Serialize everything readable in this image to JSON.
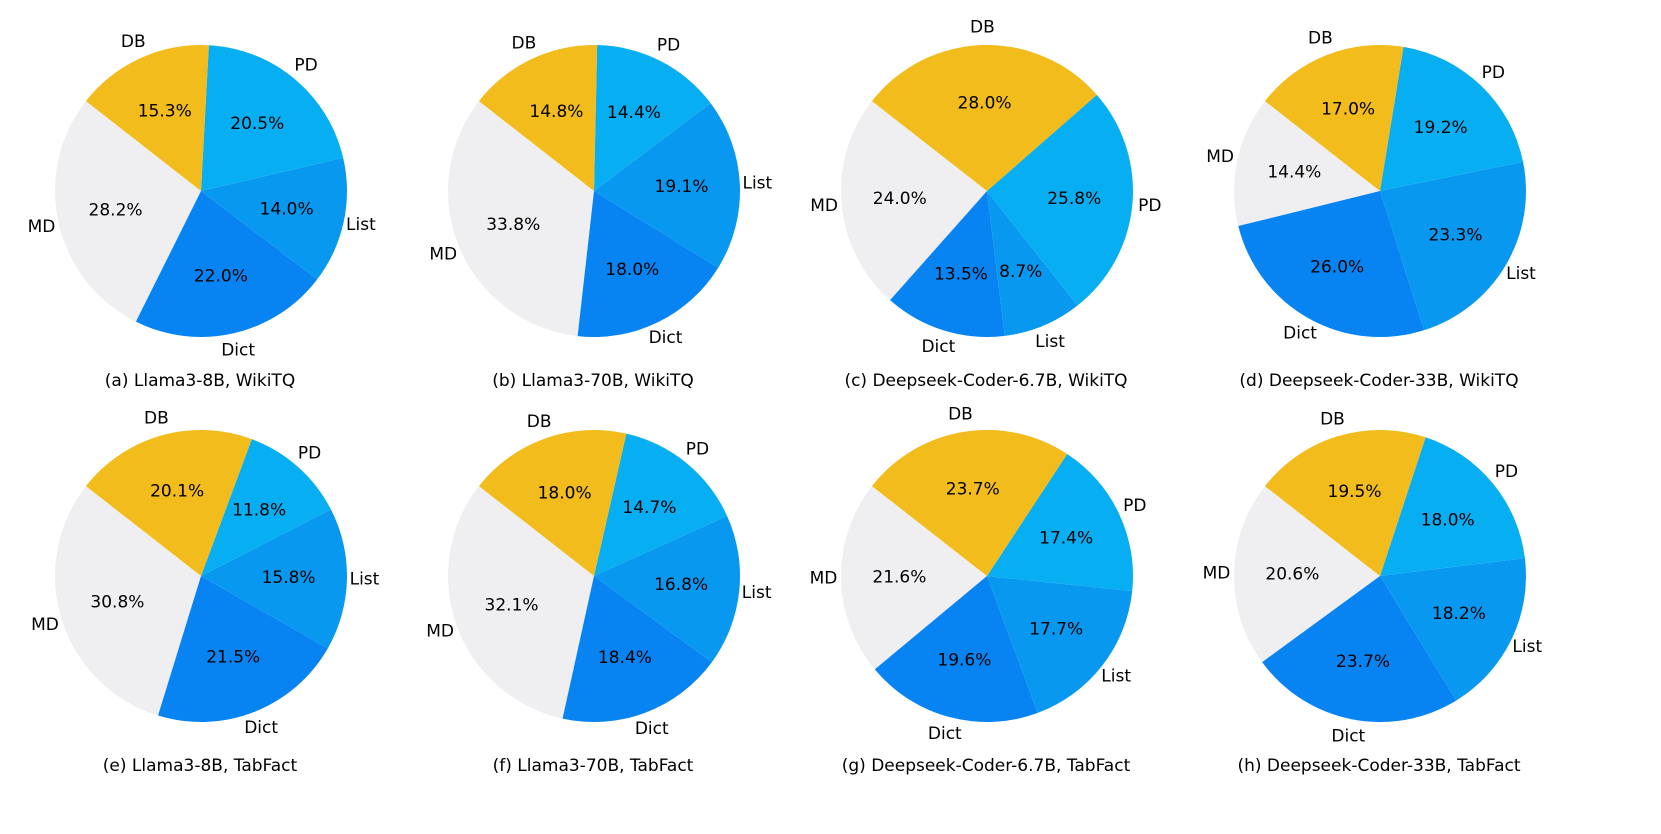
{
  "colors": {
    "DB": "#F2BC1C",
    "PD": "#08AEF2",
    "List": "#0898F0",
    "Dict": "#0884F2",
    "MD": "#EFEFF1"
  },
  "chart_data": [
    {
      "type": "pie",
      "caption": "(a) Llama3-8B, WikiTQ",
      "labels": [
        "DB",
        "PD",
        "List",
        "Dict",
        "MD"
      ],
      "values": [
        15.3,
        20.5,
        14.0,
        22.0,
        28.2
      ],
      "value_labels": [
        "15.3%",
        "20.5%",
        "14.0%",
        "22.0%",
        "28.2%"
      ]
    },
    {
      "type": "pie",
      "caption": "(b) Llama3-70B, WikiTQ",
      "labels": [
        "DB",
        "PD",
        "List",
        "Dict",
        "MD"
      ],
      "values": [
        14.8,
        14.4,
        19.1,
        18.0,
        33.8
      ],
      "value_labels": [
        "14.8%",
        "14.4%",
        "19.1%",
        "18.0%",
        "33.8%"
      ]
    },
    {
      "type": "pie",
      "caption": "(c) Deepseek-Coder-6.7B, WikiTQ",
      "labels": [
        "DB",
        "PD",
        "List",
        "Dict",
        "MD"
      ],
      "values": [
        28.0,
        25.8,
        8.7,
        13.5,
        24.0
      ],
      "value_labels": [
        "28.0%",
        "25.8%",
        "8.7%",
        "13.5%",
        "24.0%"
      ]
    },
    {
      "type": "pie",
      "caption": "(d) Deepseek-Coder-33B, WikiTQ",
      "labels": [
        "DB",
        "PD",
        "List",
        "Dict",
        "MD"
      ],
      "values": [
        17.0,
        19.2,
        23.3,
        26.0,
        14.4
      ],
      "value_labels": [
        "17.0%",
        "19.2%",
        "23.3%",
        "26.0%",
        "14.4%"
      ]
    },
    {
      "type": "pie",
      "caption": "(e) Llama3-8B, TabFact",
      "labels": [
        "DB",
        "PD",
        "List",
        "Dict",
        "MD"
      ],
      "values": [
        20.1,
        11.8,
        15.8,
        21.5,
        30.8
      ],
      "value_labels": [
        "20.1%",
        "11.8%",
        "15.8%",
        "21.5%",
        "30.8%"
      ]
    },
    {
      "type": "pie",
      "caption": "(f) Llama3-70B, TabFact",
      "labels": [
        "DB",
        "PD",
        "List",
        "Dict",
        "MD"
      ],
      "values": [
        18.0,
        14.7,
        16.8,
        18.4,
        32.1
      ],
      "value_labels": [
        "18.0%",
        "14.7%",
        "16.8%",
        "18.4%",
        "32.1%"
      ]
    },
    {
      "type": "pie",
      "caption": "(g) Deepseek-Coder-6.7B, TabFact",
      "labels": [
        "DB",
        "PD",
        "List",
        "Dict",
        "MD"
      ],
      "values": [
        23.7,
        17.4,
        17.7,
        19.6,
        21.6
      ],
      "value_labels": [
        "23.7%",
        "17.4%",
        "17.7%",
        "19.6%",
        "21.6%"
      ]
    },
    {
      "type": "pie",
      "caption": "(h) Deepseek-Coder-33B, TabFact",
      "labels": [
        "DB",
        "PD",
        "List",
        "Dict",
        "MD"
      ],
      "values": [
        19.5,
        18.0,
        18.2,
        23.7,
        20.6
      ],
      "value_labels": [
        "19.5%",
        "18.0%",
        "18.2%",
        "23.7%",
        "20.6%"
      ]
    }
  ]
}
